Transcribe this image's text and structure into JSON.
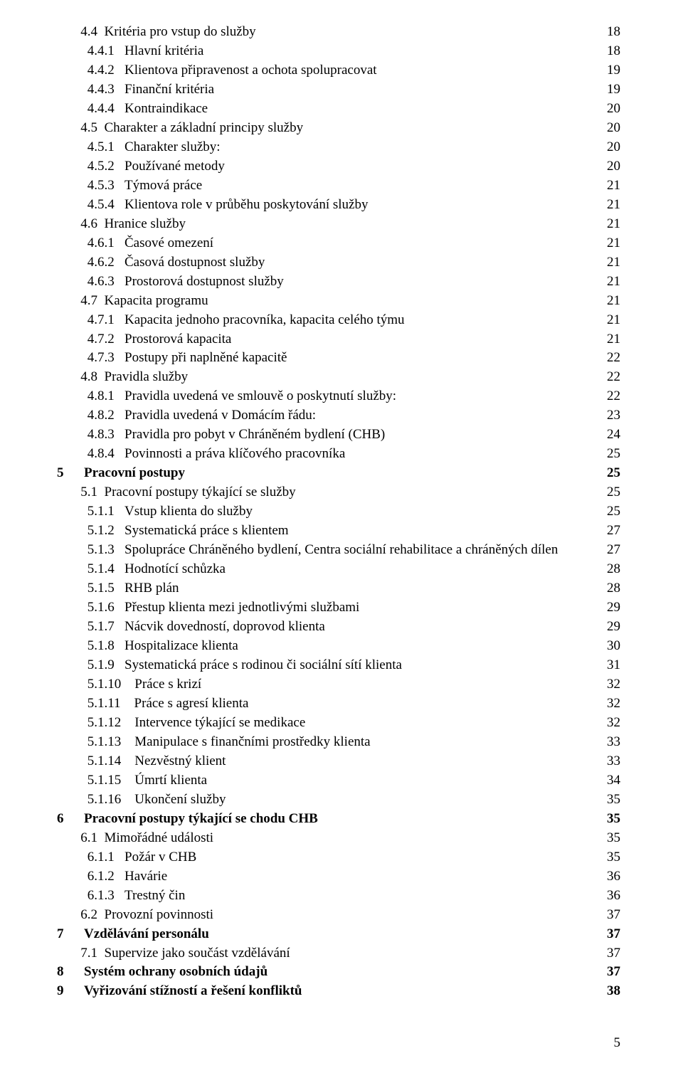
{
  "typography": {
    "fontFamily": "Times New Roman",
    "baseFontSize": 19,
    "lineHeight": 1.42,
    "textColor": "#000000",
    "backgroundColor": "#ffffff"
  },
  "footerPageNumber": "5",
  "entries": [
    {
      "chapter": "",
      "indent": 2,
      "number": "4.4",
      "title": "Kritéria pro vstup do služby",
      "page": "18",
      "bold": false
    },
    {
      "chapter": "",
      "indent": 3,
      "number": "4.4.1",
      "title": "Hlavní kritéria",
      "page": "18",
      "bold": false
    },
    {
      "chapter": "",
      "indent": 3,
      "number": "4.4.2",
      "title": "Klientova připravenost a ochota spolupracovat",
      "page": "19",
      "bold": false
    },
    {
      "chapter": "",
      "indent": 3,
      "number": "4.4.3",
      "title": "Finanční kritéria",
      "page": "19",
      "bold": false
    },
    {
      "chapter": "",
      "indent": 3,
      "number": "4.4.4",
      "title": "Kontraindikace",
      "page": "20",
      "bold": false
    },
    {
      "chapter": "",
      "indent": 2,
      "number": "4.5",
      "title": "Charakter a základní principy služby",
      "page": "20",
      "bold": false
    },
    {
      "chapter": "",
      "indent": 3,
      "number": "4.5.1",
      "title": "Charakter služby:",
      "page": "20",
      "bold": false
    },
    {
      "chapter": "",
      "indent": 3,
      "number": "4.5.2",
      "title": "Používané metody",
      "page": "20",
      "bold": false
    },
    {
      "chapter": "",
      "indent": 3,
      "number": "4.5.3",
      "title": "Týmová práce",
      "page": "21",
      "bold": false
    },
    {
      "chapter": "",
      "indent": 3,
      "number": "4.5.4",
      "title": "Klientova role v průběhu poskytování služby",
      "page": "21",
      "bold": false
    },
    {
      "chapter": "",
      "indent": 2,
      "number": "4.6",
      "title": "Hranice služby",
      "page": "21",
      "bold": false
    },
    {
      "chapter": "",
      "indent": 3,
      "number": "4.6.1",
      "title": "Časové omezení",
      "page": "21",
      "bold": false
    },
    {
      "chapter": "",
      "indent": 3,
      "number": "4.6.2",
      "title": "Časová dostupnost služby",
      "page": "21",
      "bold": false
    },
    {
      "chapter": "",
      "indent": 3,
      "number": "4.6.3",
      "title": "Prostorová dostupnost služby",
      "page": "21",
      "bold": false
    },
    {
      "chapter": "",
      "indent": 2,
      "number": "4.7",
      "title": "Kapacita programu",
      "page": "21",
      "bold": false
    },
    {
      "chapter": "",
      "indent": 3,
      "number": "4.7.1",
      "title": "Kapacita jednoho pracovníka, kapacita celého týmu",
      "page": "21",
      "bold": false
    },
    {
      "chapter": "",
      "indent": 3,
      "number": "4.7.2",
      "title": "Prostorová kapacita",
      "page": "21",
      "bold": false
    },
    {
      "chapter": "",
      "indent": 3,
      "number": "4.7.3",
      "title": "Postupy při naplněné kapacitě",
      "page": "22",
      "bold": false
    },
    {
      "chapter": "",
      "indent": 2,
      "number": "4.8",
      "title": "Pravidla služby",
      "page": "22",
      "bold": false
    },
    {
      "chapter": "",
      "indent": 3,
      "number": "4.8.1",
      "title": "Pravidla uvedená ve smlouvě o poskytnutí služby:",
      "page": "22",
      "bold": false
    },
    {
      "chapter": "",
      "indent": 3,
      "number": "4.8.2",
      "title": "Pravidla uvedená v Domácím řádu:",
      "page": "23",
      "bold": false
    },
    {
      "chapter": "",
      "indent": 3,
      "number": "4.8.3",
      "title": "Pravidla pro pobyt v Chráněném bydlení (CHB)",
      "page": "24",
      "bold": false
    },
    {
      "chapter": "",
      "indent": 3,
      "number": "4.8.4",
      "title": "Povinnosti a práva klíčového pracovníka",
      "page": "25",
      "bold": false
    },
    {
      "chapter": "5",
      "indent": 1,
      "number": "",
      "title": "Pracovní postupy",
      "page": "25",
      "bold": true
    },
    {
      "chapter": "",
      "indent": 2,
      "number": "5.1",
      "title": "Pracovní postupy týkající se služby",
      "page": "25",
      "bold": false
    },
    {
      "chapter": "",
      "indent": 3,
      "number": "5.1.1",
      "title": "Vstup klienta do služby",
      "page": "25",
      "bold": false
    },
    {
      "chapter": "",
      "indent": 3,
      "number": "5.1.2",
      "title": "Systematická práce s klientem",
      "page": "27",
      "bold": false
    },
    {
      "chapter": "",
      "indent": 3,
      "number": "5.1.3",
      "title": "Spolupráce Chráněného bydlení, Centra sociální rehabilitace a chráněných dílen",
      "page": "27",
      "bold": false
    },
    {
      "chapter": "",
      "indent": 3,
      "number": "5.1.4",
      "title": "Hodnotící schůzka",
      "page": "28",
      "bold": false
    },
    {
      "chapter": "",
      "indent": 3,
      "number": "5.1.5",
      "title": "RHB plán",
      "page": "28",
      "bold": false
    },
    {
      "chapter": "",
      "indent": 3,
      "number": "5.1.6",
      "title": "Přestup klienta mezi jednotlivými službami",
      "page": "29",
      "bold": false
    },
    {
      "chapter": "",
      "indent": 3,
      "number": "5.1.7",
      "title": "Nácvik dovedností, doprovod klienta",
      "page": "29",
      "bold": false
    },
    {
      "chapter": "",
      "indent": 3,
      "number": "5.1.8",
      "title": "Hospitalizace klienta",
      "page": "30",
      "bold": false
    },
    {
      "chapter": "",
      "indent": 3,
      "number": "5.1.9",
      "title": "Systematická práce s rodinou či sociální sítí klienta",
      "page": "31",
      "bold": false
    },
    {
      "chapter": "",
      "indent": 3,
      "number": "5.1.10",
      "title": "Práce s krizí",
      "page": "32",
      "bold": false
    },
    {
      "chapter": "",
      "indent": 3,
      "number": "5.1.11",
      "title": "Práce s agresí klienta",
      "page": "32",
      "bold": false
    },
    {
      "chapter": "",
      "indent": 3,
      "number": "5.1.12",
      "title": "Intervence týkající se medikace",
      "page": "32",
      "bold": false
    },
    {
      "chapter": "",
      "indent": 3,
      "number": "5.1.13",
      "title": "Manipulace s finančními prostředky klienta",
      "page": "33",
      "bold": false
    },
    {
      "chapter": "",
      "indent": 3,
      "number": "5.1.14",
      "title": "Nezvěstný klient",
      "page": "33",
      "bold": false
    },
    {
      "chapter": "",
      "indent": 3,
      "number": "5.1.15",
      "title": "Úmrtí klienta",
      "page": "34",
      "bold": false
    },
    {
      "chapter": "",
      "indent": 3,
      "number": "5.1.16",
      "title": "Ukončení služby",
      "page": "35",
      "bold": false
    },
    {
      "chapter": "6",
      "indent": 1,
      "number": "",
      "title": "Pracovní postupy týkající se chodu CHB",
      "page": "35",
      "bold": true
    },
    {
      "chapter": "",
      "indent": 2,
      "number": "6.1",
      "title": "Mimořádné události",
      "page": "35",
      "bold": false
    },
    {
      "chapter": "",
      "indent": 3,
      "number": "6.1.1",
      "title": "Požár v CHB",
      "page": "35",
      "bold": false
    },
    {
      "chapter": "",
      "indent": 3,
      "number": "6.1.2",
      "title": "Havárie",
      "page": "36",
      "bold": false
    },
    {
      "chapter": "",
      "indent": 3,
      "number": "6.1.3",
      "title": "Trestný čin",
      "page": "36",
      "bold": false
    },
    {
      "chapter": "",
      "indent": 2,
      "number": "6.2",
      "title": "Provozní povinnosti",
      "page": "37",
      "bold": false
    },
    {
      "chapter": "7",
      "indent": 1,
      "number": "",
      "title": "Vzdělávání personálu",
      "page": "37",
      "bold": true
    },
    {
      "chapter": "",
      "indent": 2,
      "number": "7.1",
      "title": "Supervize jako součást vzdělávání",
      "page": "37",
      "bold": false
    },
    {
      "chapter": "8",
      "indent": 1,
      "number": "",
      "title": "Systém ochrany osobních údajů",
      "page": "37",
      "bold": true
    },
    {
      "chapter": "9",
      "indent": 1,
      "number": "",
      "title": "Vyřizování stížností a řešení konfliktů",
      "page": "38",
      "bold": true
    }
  ],
  "layout": {
    "chapterColumnWidth": 7,
    "level2LabelWidth": 5,
    "level3LabelWidth": 8,
    "extraGapForTwoDigitSub": 2,
    "extraSpacesLevel3": 2
  }
}
